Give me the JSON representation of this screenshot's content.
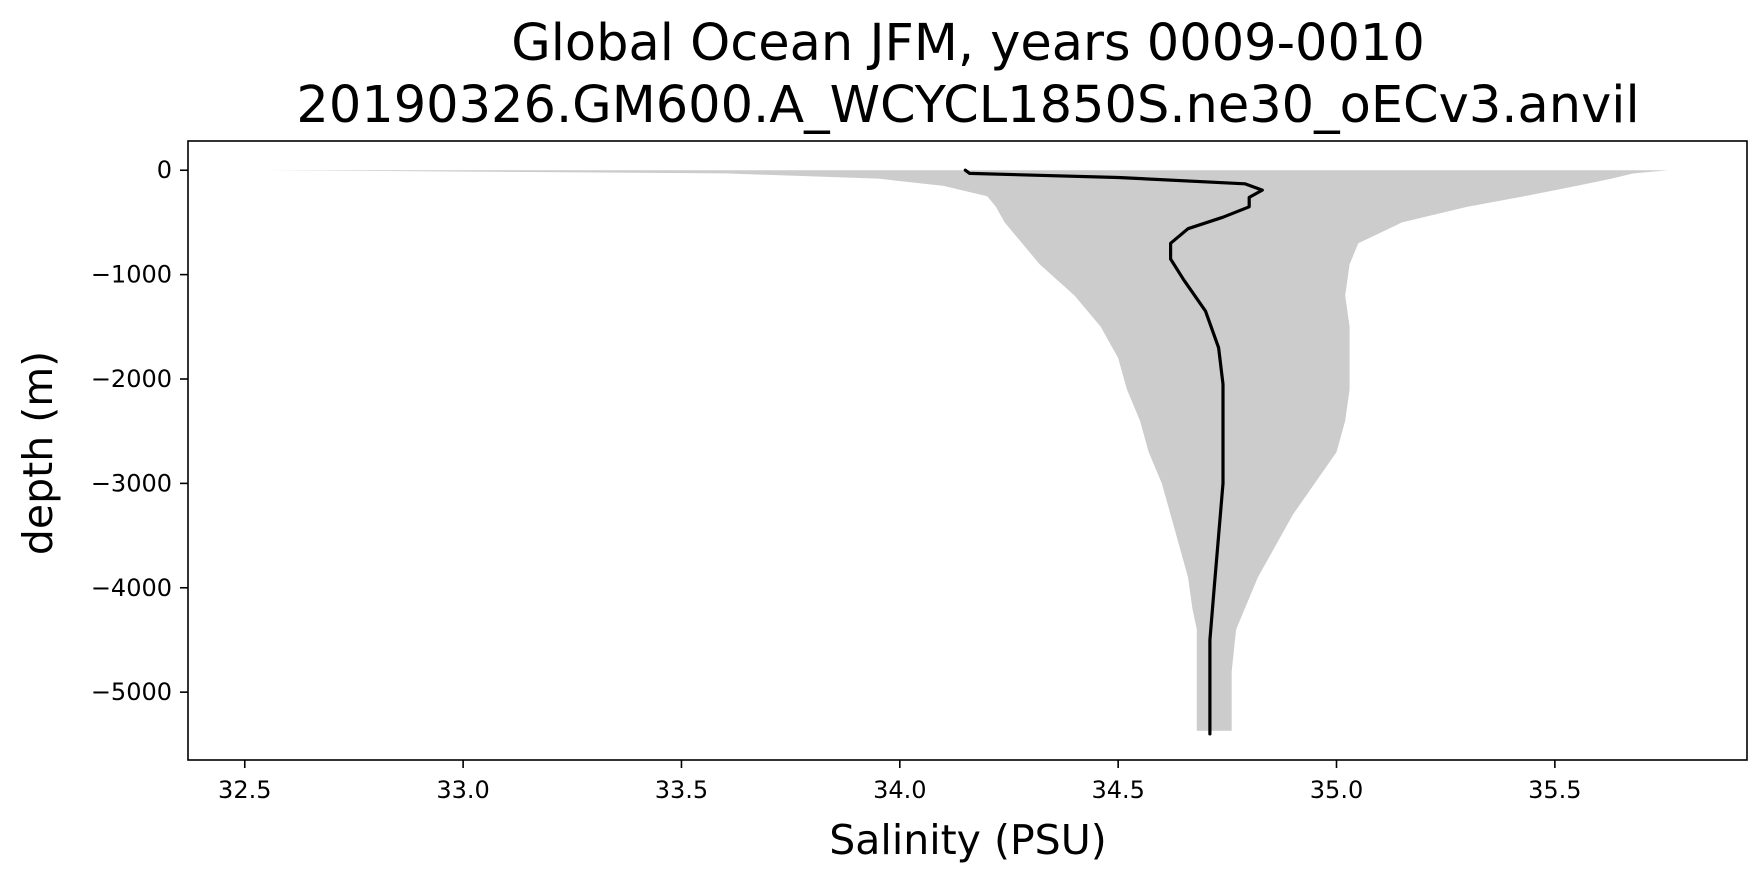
{
  "chart_data": {
    "type": "line",
    "title": "Global Ocean JFM, years 0009-0010",
    "subtitle": "20190326.GM600.A_WCYCL1850S.ne30_oECv3.anvil",
    "xlabel": "Salinity (PSU)",
    "ylabel": "depth (m)",
    "xlim": [
      32.37,
      35.94
    ],
    "ylim": [
      -5650,
      280
    ],
    "xticks": [
      32.5,
      33.0,
      33.5,
      34.0,
      34.5,
      35.0,
      35.5
    ],
    "xtick_labels": [
      "32.5",
      "33.0",
      "33.5",
      "34.0",
      "34.5",
      "35.0",
      "35.5"
    ],
    "yticks": [
      0,
      -1000,
      -2000,
      -3000,
      -4000,
      -5000
    ],
    "ytick_labels": [
      "0",
      "−1000",
      "−2000",
      "−3000",
      "−4000",
      "−5000"
    ],
    "grid": false,
    "colors": {
      "line": "#000000",
      "band": "#cccccc",
      "axes": "#000000"
    },
    "series": [
      {
        "type": "line",
        "x": [
          34.15,
          34.16,
          34.5,
          34.79,
          34.83,
          34.8,
          34.8,
          34.74,
          34.66,
          34.62,
          34.62,
          34.65,
          34.7,
          34.73,
          34.74,
          34.74,
          34.74,
          34.73,
          34.72,
          34.71,
          34.71,
          34.71
        ],
        "y": [
          0,
          -30,
          -70,
          -130,
          -190,
          -260,
          -350,
          -450,
          -560,
          -700,
          -850,
          -1050,
          -1350,
          -1700,
          -2050,
          -2500,
          -3000,
          -3500,
          -4000,
          -4500,
          -5000,
          -5400
        ]
      },
      {
        "type": "band",
        "depth": [
          0,
          -30,
          -80,
          -150,
          -250,
          -350,
          -500,
          -700,
          -900,
          -1200,
          -1500,
          -1800,
          -2100,
          -2400,
          -2700,
          -3000,
          -3300,
          -3600,
          -3900,
          -4200,
          -4400,
          -4800,
          -5200,
          -5370
        ],
        "lower": [
          32.55,
          33.6,
          33.95,
          34.1,
          34.2,
          34.22,
          34.24,
          34.28,
          34.32,
          34.4,
          34.46,
          34.5,
          34.52,
          34.55,
          34.57,
          34.6,
          34.62,
          34.64,
          34.66,
          34.67,
          34.68,
          34.68,
          34.68,
          34.68
        ],
        "upper": [
          35.76,
          35.68,
          35.63,
          35.55,
          35.43,
          35.3,
          35.15,
          35.05,
          35.03,
          35.02,
          35.03,
          35.03,
          35.03,
          35.02,
          35.0,
          34.95,
          34.9,
          34.86,
          34.82,
          34.79,
          34.77,
          34.76,
          34.76,
          34.76
        ]
      }
    ]
  }
}
